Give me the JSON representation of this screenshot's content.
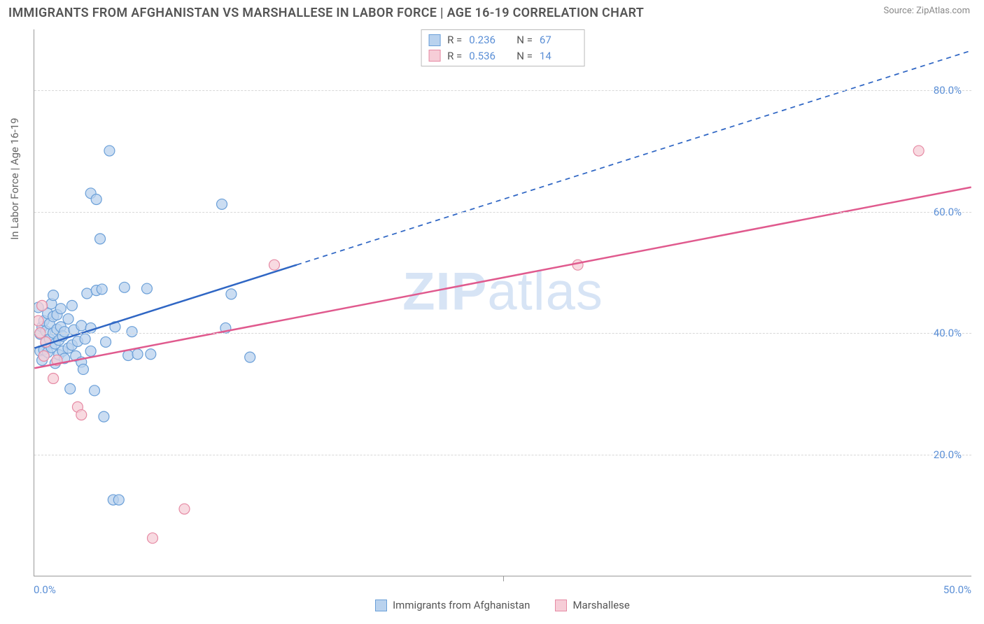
{
  "title": "IMMIGRANTS FROM AFGHANISTAN VS MARSHALLESE IN LABOR FORCE | AGE 16-19 CORRELATION CHART",
  "source": "Source: ZipAtlas.com",
  "y_axis_title": "In Labor Force | Age 16-19",
  "watermark": {
    "bold": "ZIP",
    "rest": "atlas"
  },
  "chart": {
    "type": "scatter",
    "xlim": [
      0,
      50
    ],
    "ylim": [
      0,
      90
    ],
    "x_ticks": [
      0,
      25,
      50
    ],
    "x_tick_labels": [
      "0.0%",
      "",
      "50.0%"
    ],
    "y_ticks": [
      20,
      40,
      60,
      80
    ],
    "y_tick_labels": [
      "20.0%",
      "40.0%",
      "60.0%",
      "80.0%"
    ],
    "background_color": "#ffffff",
    "grid_color": "#d8d8d8",
    "series": [
      {
        "name": "Immigrants from Afghanistan",
        "marker_fill": "#b9d2ee",
        "marker_stroke": "#6a9fd8",
        "marker_radius": 7.5,
        "marker_opacity": 0.75,
        "r": "0.236",
        "n": "67",
        "trend": {
          "color": "#2f66c4",
          "width": 2.5,
          "solid_to_x": 14,
          "x1": 0,
          "y1": 37.5,
          "x2": 50,
          "y2": 86.5
        },
        "points": [
          [
            0.2,
            44.2
          ],
          [
            0.3,
            37.0
          ],
          [
            0.3,
            39.8
          ],
          [
            0.4,
            41.0
          ],
          [
            0.4,
            35.5
          ],
          [
            0.5,
            42.0
          ],
          [
            0.5,
            37.2
          ],
          [
            0.6,
            40.3
          ],
          [
            0.6,
            38.4
          ],
          [
            0.7,
            43.2
          ],
          [
            0.7,
            36.8
          ],
          [
            0.8,
            39.0
          ],
          [
            0.8,
            41.5
          ],
          [
            0.9,
            44.8
          ],
          [
            0.9,
            37.6
          ],
          [
            1.0,
            40.0
          ],
          [
            1.0,
            42.7
          ],
          [
            1.0,
            46.2
          ],
          [
            1.1,
            38.2
          ],
          [
            1.1,
            35.0
          ],
          [
            1.2,
            40.6
          ],
          [
            1.2,
            43.0
          ],
          [
            1.3,
            36.4
          ],
          [
            1.3,
            38.8
          ],
          [
            1.4,
            41.0
          ],
          [
            1.4,
            44.0
          ],
          [
            1.5,
            37.0
          ],
          [
            1.5,
            39.5
          ],
          [
            1.6,
            35.8
          ],
          [
            1.6,
            40.2
          ],
          [
            1.8,
            42.3
          ],
          [
            1.8,
            37.5
          ],
          [
            1.9,
            30.8
          ],
          [
            2.0,
            38.0
          ],
          [
            2.0,
            44.5
          ],
          [
            2.1,
            40.5
          ],
          [
            2.2,
            36.2
          ],
          [
            2.3,
            38.6
          ],
          [
            2.5,
            41.2
          ],
          [
            2.5,
            35.2
          ],
          [
            2.6,
            34.0
          ],
          [
            2.7,
            39.0
          ],
          [
            2.8,
            46.5
          ],
          [
            3.0,
            40.8
          ],
          [
            3.0,
            37.0
          ],
          [
            3.0,
            63.0
          ],
          [
            3.2,
            30.5
          ],
          [
            3.3,
            62.0
          ],
          [
            3.3,
            47.0
          ],
          [
            3.5,
            55.5
          ],
          [
            3.6,
            47.2
          ],
          [
            3.7,
            26.2
          ],
          [
            3.8,
            38.5
          ],
          [
            4.0,
            70.0
          ],
          [
            4.2,
            12.5
          ],
          [
            4.3,
            41.0
          ],
          [
            4.5,
            12.5
          ],
          [
            4.8,
            47.5
          ],
          [
            5.0,
            36.3
          ],
          [
            5.2,
            40.2
          ],
          [
            5.5,
            36.5
          ],
          [
            6.0,
            47.3
          ],
          [
            6.2,
            36.5
          ],
          [
            10.0,
            61.2
          ],
          [
            10.2,
            40.8
          ],
          [
            10.5,
            46.4
          ],
          [
            11.5,
            36.0
          ]
        ]
      },
      {
        "name": "Marshallese",
        "marker_fill": "#f6cdd7",
        "marker_stroke": "#e68aa4",
        "marker_radius": 7.5,
        "marker_opacity": 0.75,
        "r": "0.536",
        "n": "14",
        "trend": {
          "color": "#e05a8e",
          "width": 2.5,
          "solid_to_x": 50,
          "x1": 0,
          "y1": 34.2,
          "x2": 50,
          "y2": 64.0
        },
        "points": [
          [
            0.2,
            42.0
          ],
          [
            0.3,
            40.0
          ],
          [
            0.4,
            44.5
          ],
          [
            0.5,
            36.2
          ],
          [
            0.6,
            38.5
          ],
          [
            1.0,
            32.5
          ],
          [
            1.2,
            35.5
          ],
          [
            2.3,
            27.8
          ],
          [
            2.5,
            26.5
          ],
          [
            6.3,
            6.2
          ],
          [
            8.0,
            11.0
          ],
          [
            12.8,
            51.2
          ],
          [
            29.0,
            51.2
          ],
          [
            47.2,
            70.0
          ]
        ]
      }
    ]
  },
  "legend_swatches": {
    "blue": {
      "fill": "#b9d2ee",
      "stroke": "#6a9fd8"
    },
    "pink": {
      "fill": "#f6cdd7",
      "stroke": "#e68aa4"
    }
  },
  "stats_labels": {
    "r": "R =",
    "n": "N ="
  }
}
